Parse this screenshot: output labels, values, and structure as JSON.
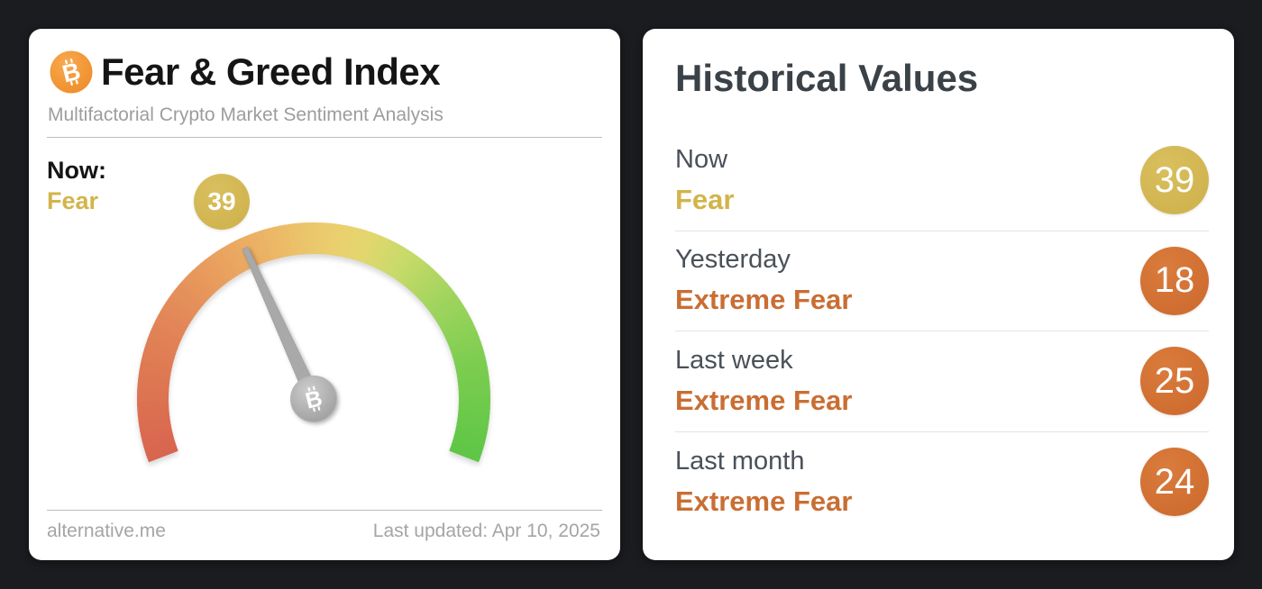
{
  "theme": {
    "page_bg": "#1b1c1f",
    "card_bg": "#ffffff",
    "gold": "#d2b44a",
    "gold_badge": "#cdb04a",
    "orange": "#c96e33",
    "orange_badge": "#cc682c",
    "title_color": "#151515",
    "muted_text": "#9d9d9d",
    "footer_text": "#a5a5a5",
    "heading_color": "#3a4147",
    "label_color": "#4a5158",
    "divider": "#bcbcbc",
    "row_divider": "#e3e3e3",
    "bitcoin_orange": "#f2953c",
    "needle_gray": "#a9a9a9"
  },
  "left_card": {
    "title": "Fear & Greed Index",
    "subtitle": "Multifactorial Crypto Market Sentiment Analysis",
    "bitcoin_glyph": "B",
    "now_label": "Now:",
    "now_classification": "Fear",
    "now_value": 39,
    "now_mood": "fear",
    "footer_left": "alternative.me",
    "footer_right": "Last updated: Apr 10, 2025"
  },
  "right_card": {
    "title": "Historical Values",
    "rows": [
      {
        "label": "Now",
        "classification": "Fear",
        "value": 39,
        "mood": "fear"
      },
      {
        "label": "Yesterday",
        "classification": "Extreme Fear",
        "value": 18,
        "mood": "extreme-fear"
      },
      {
        "label": "Last week",
        "classification": "Extreme Fear",
        "value": 25,
        "mood": "extreme-fear"
      },
      {
        "label": "Last month",
        "classification": "Extreme Fear",
        "value": 24,
        "mood": "extreme-fear"
      }
    ]
  },
  "chart_data": {
    "type": "gauge",
    "title": "Fear & Greed Index",
    "value": 39,
    "classification": "Fear",
    "range": [
      0,
      100
    ],
    "sweep_degrees": 222,
    "scale_colors": [
      {
        "t": 0.0,
        "color": "#d8644f"
      },
      {
        "t": 0.1,
        "color": "#dc7351"
      },
      {
        "t": 0.22,
        "color": "#e28557"
      },
      {
        "t": 0.34,
        "color": "#e9a05e"
      },
      {
        "t": 0.44,
        "color": "#ecb867"
      },
      {
        "t": 0.52,
        "color": "#ebcc6d"
      },
      {
        "t": 0.58,
        "color": "#e5d66e"
      },
      {
        "t": 0.65,
        "color": "#c8da69"
      },
      {
        "t": 0.74,
        "color": "#a0d45e"
      },
      {
        "t": 0.85,
        "color": "#7ccd50"
      },
      {
        "t": 1.0,
        "color": "#5ec646"
      }
    ],
    "historical": [
      {
        "label": "Now",
        "value": 39,
        "classification": "Fear"
      },
      {
        "label": "Yesterday",
        "value": 18,
        "classification": "Extreme Fear"
      },
      {
        "label": "Last week",
        "value": 25,
        "classification": "Extreme Fear"
      },
      {
        "label": "Last month",
        "value": 24,
        "classification": "Extreme Fear"
      }
    ]
  }
}
